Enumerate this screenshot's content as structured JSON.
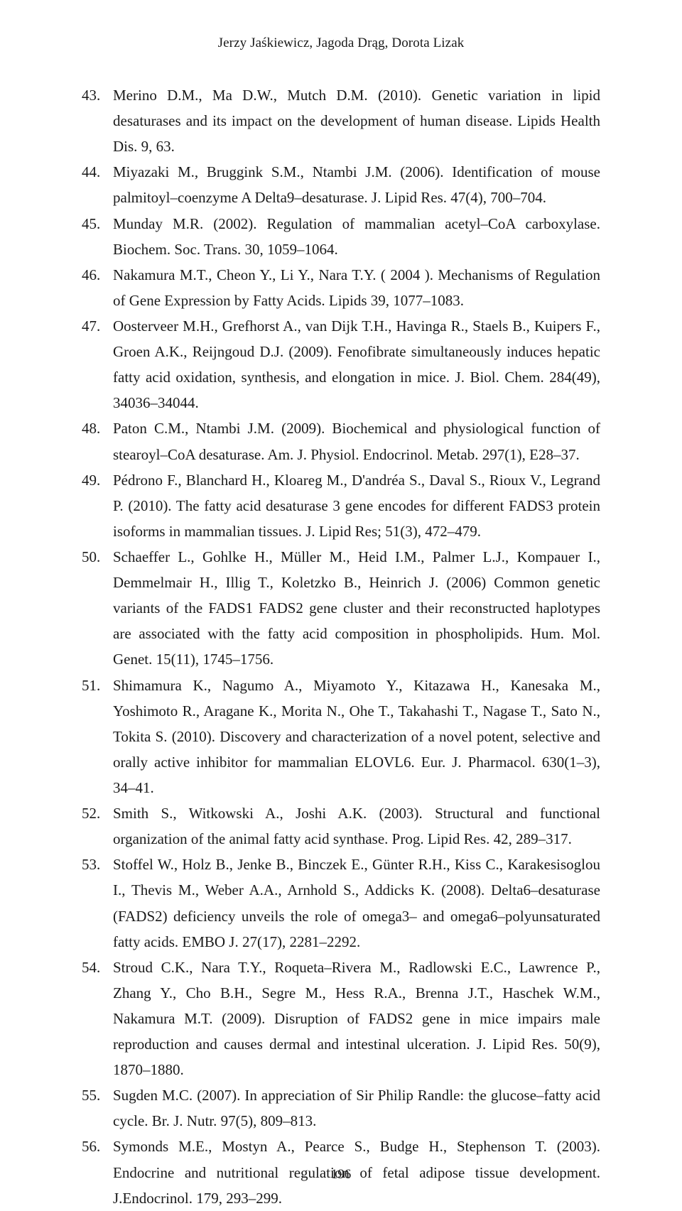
{
  "running_head": "Jerzy Jaśkiewicz, Jagoda Drąg, Dorota Lizak",
  "page_number": "196",
  "references": [
    "Merino D.M., Ma D.W., Mutch D.M. (2010). Genetic variation in lipid desaturases and its impact on the development of human disease. Lipids Health Dis. 9, 63.",
    " Miyazaki M., Bruggink S.M., Ntambi J.M. (2006). Identification of mouse palmitoyl–coenzyme A Delta9–desaturase. J. Lipid Res. 47(4), 700–704.",
    "Munday M.R. (2002). Regulation of mammalian acetyl–CoA carboxylase. Biochem. Soc. Trans. 30, 1059–1064.",
    "Nakamura M.T., Cheon Y., Li Y., Nara T.Y. ( 2004 ). Mechanisms of Regulation of Gene Expression by Fatty Acids. Lipids 39, 1077–1083.",
    " Oosterveer M.H., Grefhorst A., van Dijk T.H., Havinga R., Staels B., Kuipers F., Groen A.K., Reijngoud D.J. (2009). Fenofibrate simultaneously induces hepatic fatty acid oxidation, synthesis, and elongation in mice. J. Biol. Chem. 284(49), 34036–34044.",
    " Paton C.M., Ntambi J.M. (2009). Biochemical and physiological function of stearoyl–CoA desaturase. Am. J. Physiol. Endocrinol. Metab. 297(1), E28–37.",
    "Pédrono F., Blanchard H., Kloareg M., D'andréa S., Daval S., Rioux V., Legrand P. (2010). The fatty acid desaturase 3 gene encodes for different FADS3 protein isoforms in mammalian tissues. J. Lipid Res; 51(3), 472–479.",
    "Schaeffer L., Gohlke H., Müller M., Heid I.M., Palmer L.J., Kompauer I., Demmelmair H., Illig T., Koletzko B., Heinrich J. (2006) Common genetic variants of the FADS1 FADS2 gene cluster and their reconstructed haplotypes are associated with the fatty acid composition in phospholipids. Hum. Mol. Genet. 15(11), 1745–1756.",
    "Shimamura K., Nagumo A., Miyamoto Y., Kitazawa H., Kanesaka M., Yoshimoto R., Aragane K., Morita N., Ohe T., Takahashi T., Nagase T., Sato N., Tokita S. (2010). Discovery and characterization of a novel potent, selective and orally active inhibitor for mammalian ELOVL6. Eur. J. Pharmacol. 630(1–3), 34–41.",
    " Smith S., Witkowski A., Joshi A.K. (2003). Structural and functional organization of the animal fatty acid synthase. Prog. Lipid Res. 42, 289–317.",
    "Stoffel W., Holz B., Jenke B., Binczek E., Günter R.H., Kiss C., Karakesisoglou I., Thevis M., Weber A.A., Arnhold S., Addicks K. (2008). Delta6–desaturase (FADS2) deficiency unveils the role of omega3– and omega6–polyunsaturated fatty acids. EMBO J. 27(17), 2281–2292.",
    "Stroud C.K., Nara T.Y., Roqueta–Rivera M., Radlowski E.C., Lawrence P., Zhang Y., Cho B.H., Segre M., Hess R.A., Brenna J.T., Haschek W.M., Nakamura M.T. (2009). Disruption of FADS2 gene in mice impairs male reproduction and causes dermal and intestinal ulceration. J. Lipid Res. 50(9), 1870–1880.",
    "Sugden M.C. (2007). In appreciation of Sir Philip Randle: the glucose–fatty acid cycle. Br. J. Nutr. 97(5), 809–813.",
    "Symonds M.E., Mostyn A., Pearce S., Budge H., Stephenson T. (2003). Endocrine and nutritional regulation of fetal adipose tissue development. J.Endocrinol. 179, 293–299."
  ]
}
